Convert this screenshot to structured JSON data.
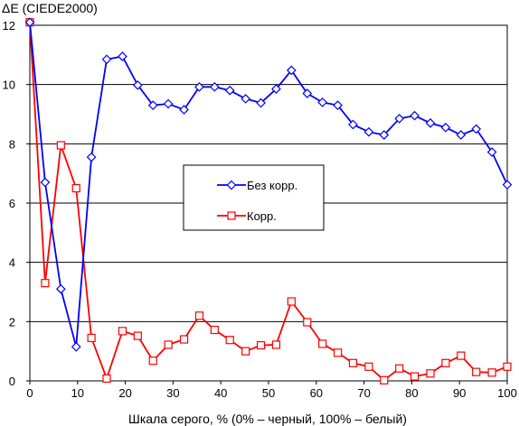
{
  "chart_data": {
    "type": "line",
    "ylabel": "ΔE (CIEDE2000)",
    "xlabel": "Шкала серого, % (0% – черный, 100% – белый)",
    "xlim": [
      0,
      100
    ],
    "ylim": [
      0,
      12
    ],
    "x_ticks": [
      "0",
      "10",
      "20",
      "30",
      "40",
      "50",
      "60",
      "70",
      "80",
      "90",
      "100"
    ],
    "y_ticks": [
      "0",
      "2",
      "4",
      "6",
      "8",
      "10",
      "12"
    ],
    "grid": "horizontal",
    "legend_position": "center",
    "series": [
      {
        "name": "Без корр.",
        "color": "#0000ff",
        "marker": "diamond",
        "x": [
          0,
          3.2,
          6.5,
          9.7,
          12.9,
          16.1,
          19.4,
          22.6,
          25.8,
          29.0,
          32.3,
          35.5,
          38.7,
          41.9,
          45.2,
          48.4,
          51.6,
          54.8,
          58.1,
          61.3,
          64.5,
          67.7,
          71.0,
          74.2,
          77.4,
          80.6,
          83.9,
          87.1,
          90.3,
          93.5,
          96.8,
          100
        ],
        "values": [
          12.1,
          6.7,
          3.1,
          1.15,
          7.55,
          10.85,
          10.95,
          9.98,
          9.3,
          9.35,
          9.15,
          9.92,
          9.92,
          9.8,
          9.52,
          9.38,
          9.85,
          10.48,
          9.7,
          9.4,
          9.3,
          8.65,
          8.4,
          8.3,
          8.85,
          8.95,
          8.7,
          8.55,
          8.3,
          8.5,
          7.72,
          6.62
        ]
      },
      {
        "name": "Корр.",
        "color": "#ff0000",
        "marker": "square",
        "x": [
          0,
          3.2,
          6.5,
          9.7,
          12.9,
          16.1,
          19.4,
          22.6,
          25.8,
          29.0,
          32.3,
          35.5,
          38.7,
          41.9,
          45.2,
          48.4,
          51.6,
          54.8,
          58.1,
          61.3,
          64.5,
          67.7,
          71.0,
          74.2,
          77.4,
          80.6,
          83.9,
          87.1,
          90.3,
          93.5,
          96.8,
          100
        ],
        "values": [
          12.1,
          3.3,
          7.95,
          6.5,
          1.45,
          0.08,
          1.68,
          1.52,
          0.68,
          1.22,
          1.4,
          2.2,
          1.72,
          1.38,
          1.0,
          1.2,
          1.22,
          2.68,
          1.98,
          1.25,
          0.95,
          0.6,
          0.48,
          0.02,
          0.42,
          0.15,
          0.25,
          0.6,
          0.85,
          0.3,
          0.28,
          0.48
        ]
      }
    ]
  }
}
